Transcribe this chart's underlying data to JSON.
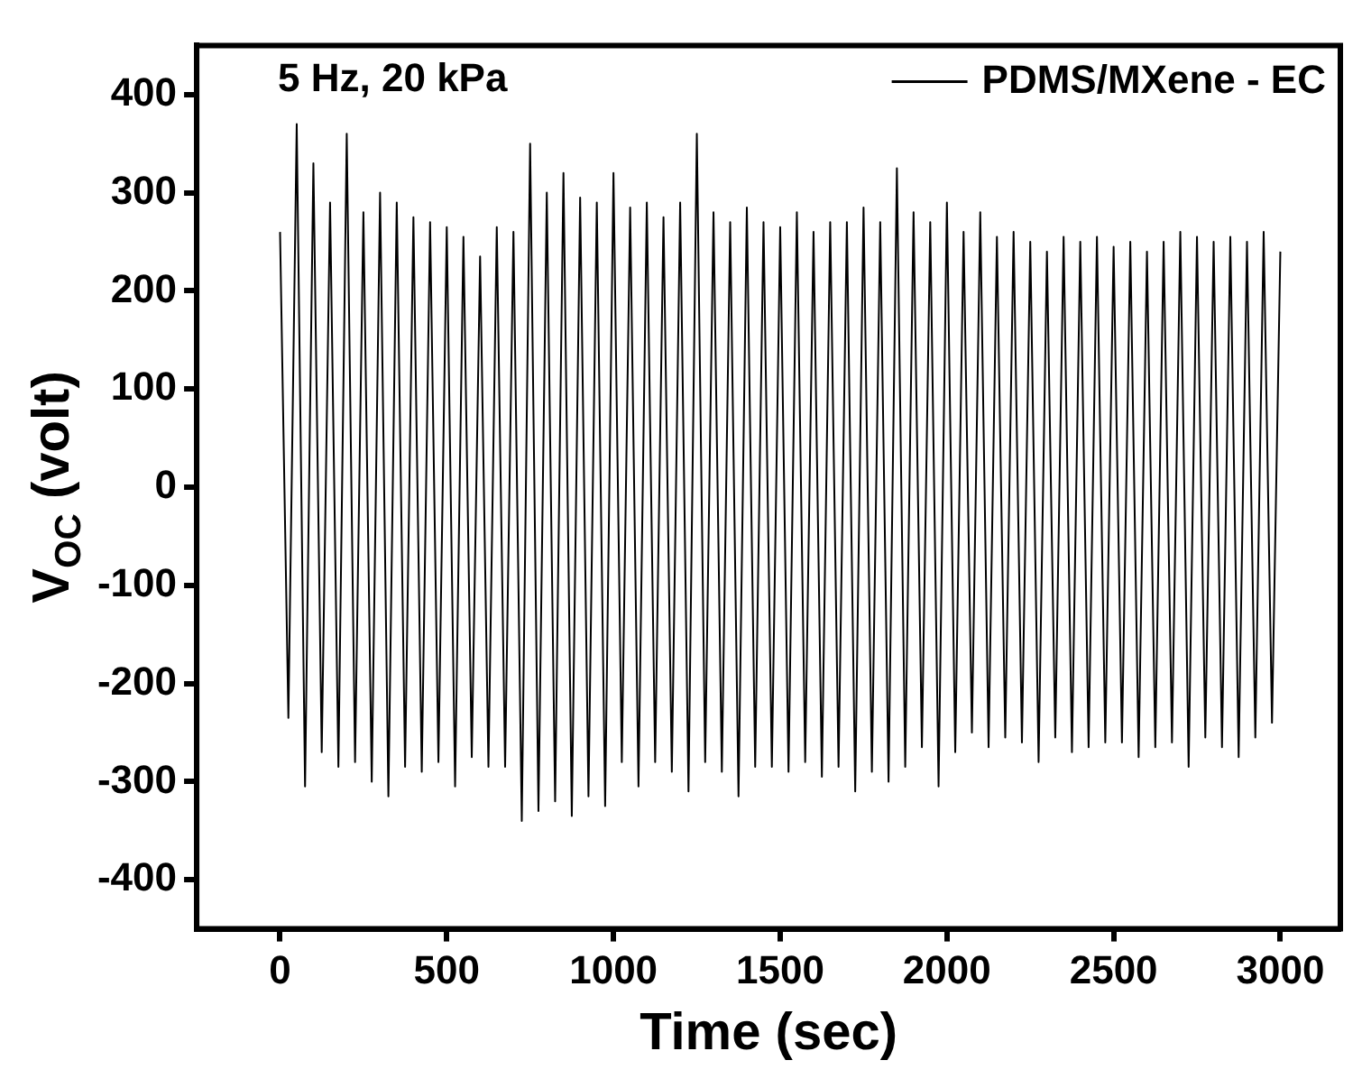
{
  "chart_data": {
    "type": "line",
    "xlabel": "Time (sec)",
    "ylabel": "V$_{OC}$ (volt)",
    "annotations": [
      "5 Hz, 20 kPa"
    ],
    "xlim": [
      -250,
      3180
    ],
    "xticks": [
      0,
      500,
      1000,
      1500,
      2000,
      2500,
      3000
    ],
    "ylim": [
      -450,
      450
    ],
    "yticks": [
      -400,
      -300,
      -200,
      -100,
      0,
      100,
      200,
      300,
      400
    ],
    "grid": false,
    "legend": "top right",
    "marker": "none",
    "line_style": "solid",
    "series": [
      {
        "name": "PDMS/MXene - EC",
        "color": "#000000",
        "x": [
          0,
          25,
          50,
          75,
          100,
          125,
          150,
          175,
          200,
          225,
          250,
          275,
          300,
          325,
          350,
          375,
          400,
          425,
          450,
          475,
          500,
          525,
          550,
          575,
          600,
          625,
          650,
          675,
          700,
          725,
          750,
          775,
          800,
          825,
          850,
          875,
          900,
          925,
          950,
          975,
          1000,
          1025,
          1050,
          1075,
          1100,
          1125,
          1150,
          1175,
          1200,
          1225,
          1250,
          1275,
          1300,
          1325,
          1350,
          1375,
          1400,
          1425,
          1450,
          1475,
          1500,
          1525,
          1550,
          1575,
          1600,
          1625,
          1650,
          1675,
          1700,
          1725,
          1750,
          1775,
          1800,
          1825,
          1850,
          1875,
          1900,
          1925,
          1950,
          1975,
          2000,
          2025,
          2050,
          2075,
          2100,
          2125,
          2150,
          2175,
          2200,
          2225,
          2250,
          2275,
          2300,
          2325,
          2350,
          2375,
          2400,
          2425,
          2450,
          2475,
          2500,
          2525,
          2550,
          2575,
          2600,
          2625,
          2650,
          2675,
          2700,
          2725,
          2750,
          2775,
          2800,
          2825,
          2850,
          2875,
          2900,
          2925,
          2950,
          2975,
          3000
        ],
        "values": [
          260,
          -235,
          370,
          -305,
          330,
          -270,
          290,
          -285,
          360,
          -280,
          280,
          -300,
          300,
          -315,
          290,
          -285,
          275,
          -290,
          270,
          -280,
          265,
          -305,
          255,
          -275,
          235,
          -285,
          265,
          -285,
          260,
          -340,
          350,
          -330,
          300,
          -320,
          320,
          -335,
          295,
          -315,
          290,
          -325,
          320,
          -280,
          285,
          -305,
          290,
          -280,
          275,
          -290,
          290,
          -310,
          360,
          -280,
          280,
          -290,
          270,
          -315,
          285,
          -285,
          270,
          -285,
          265,
          -290,
          280,
          -280,
          260,
          -295,
          270,
          -285,
          270,
          -310,
          285,
          -290,
          270,
          -300,
          325,
          -285,
          280,
          -265,
          270,
          -305,
          290,
          -270,
          260,
          -250,
          280,
          -265,
          255,
          -255,
          260,
          -260,
          250,
          -280,
          240,
          -255,
          255,
          -270,
          250,
          -265,
          255,
          -260,
          245,
          -260,
          250,
          -275,
          240,
          -265,
          250,
          -260,
          260,
          -285,
          255,
          -255,
          250,
          -265,
          255,
          -275,
          250,
          -255,
          260,
          -240,
          240
        ]
      }
    ]
  }
}
